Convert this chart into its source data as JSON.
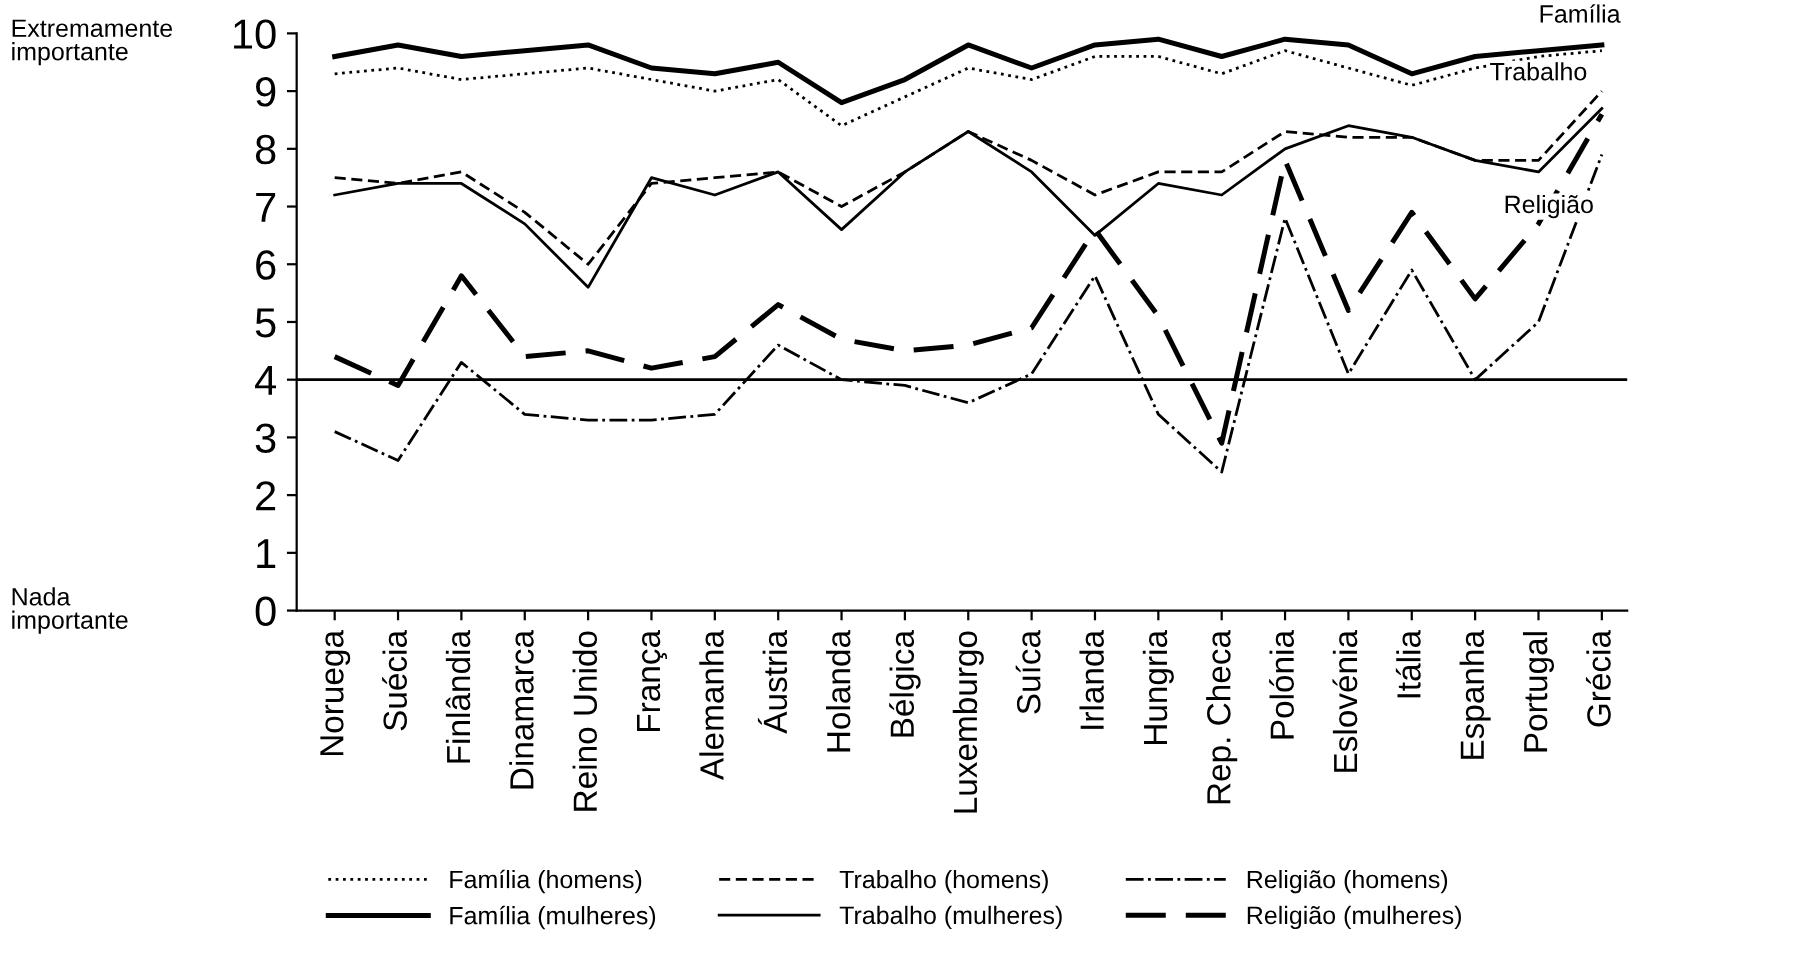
{
  "chart_data": {
    "type": "line",
    "categories": [
      "Noruega",
      "Suécia",
      "Finlândia",
      "Dinamarca",
      "Reino Unido",
      "França",
      "Alemanha",
      "Áustria",
      "Holanda",
      "Bélgica",
      "Luxemburgo",
      "Suíca",
      "Irlanda",
      "Hungria",
      "Rep. Checa",
      "Polónia",
      "Eslovénia",
      "Itália",
      "Espanha",
      "Portugal",
      "Grécia"
    ],
    "series": [
      {
        "name": "Família (homens)",
        "color": "#000000",
        "line_style": "dotted",
        "values": [
          9.3,
          9.4,
          9.2,
          9.3,
          9.4,
          9.2,
          9.0,
          9.2,
          8.4,
          8.9,
          9.4,
          9.2,
          9.6,
          9.6,
          9.3,
          9.7,
          9.4,
          9.1,
          9.4,
          9.6,
          9.7
        ]
      },
      {
        "name": "Família (mulheres)",
        "color": "#000000",
        "line_style": "solid",
        "values": [
          9.6,
          9.8,
          9.6,
          9.7,
          9.8,
          9.4,
          9.3,
          9.5,
          8.8,
          9.2,
          9.8,
          9.4,
          9.8,
          9.9,
          9.6,
          9.9,
          9.8,
          9.3,
          9.6,
          9.7,
          9.8
        ]
      },
      {
        "name": "Trabalho (homens)",
        "color": "#000000",
        "line_style": "dashed",
        "values": [
          7.5,
          7.4,
          7.6,
          6.9,
          6.0,
          7.4,
          7.5,
          7.6,
          7.0,
          7.6,
          8.3,
          7.8,
          7.2,
          7.6,
          7.6,
          8.3,
          8.2,
          8.2,
          7.8,
          7.8,
          9.0
        ]
      },
      {
        "name": "Trabalho (mulheres)",
        "color": "#000000",
        "line_style": "solid",
        "values": [
          7.2,
          7.4,
          7.4,
          6.7,
          5.6,
          7.5,
          7.2,
          7.6,
          6.6,
          7.6,
          8.3,
          7.6,
          6.5,
          7.4,
          7.2,
          8.0,
          8.4,
          8.2,
          7.8,
          7.6,
          8.7
        ]
      },
      {
        "name": "Religião (homens)",
        "color": "#000000",
        "line_style": "dashdot",
        "values": [
          3.1,
          2.6,
          4.3,
          3.4,
          3.3,
          3.3,
          3.4,
          4.6,
          4.0,
          3.9,
          3.6,
          4.1,
          5.8,
          3.4,
          2.4,
          6.8,
          4.1,
          5.9,
          4.0,
          5.0,
          7.9
        ]
      },
      {
        "name": "Religião (mulheres)",
        "color": "#000000",
        "line_style": "dashed",
        "values": [
          4.4,
          3.9,
          5.8,
          4.4,
          4.5,
          4.2,
          4.4,
          5.3,
          4.7,
          4.5,
          4.6,
          4.9,
          6.6,
          5.1,
          2.9,
          7.8,
          5.2,
          6.9,
          5.4,
          6.7,
          8.6
        ]
      }
    ],
    "ylim": [
      0,
      10
    ],
    "yticks": [
      0,
      1,
      2,
      3,
      4,
      5,
      6,
      7,
      8,
      9,
      10
    ],
    "ref_lines": [
      {
        "axis": "y",
        "value": 4,
        "color": "#000000"
      }
    ],
    "annotations": [
      "Extremamente importante",
      "Nada importante",
      "Família",
      "Trabalho",
      "Religião"
    ],
    "legend": "bottom",
    "grid": false,
    "marker": "none"
  }
}
